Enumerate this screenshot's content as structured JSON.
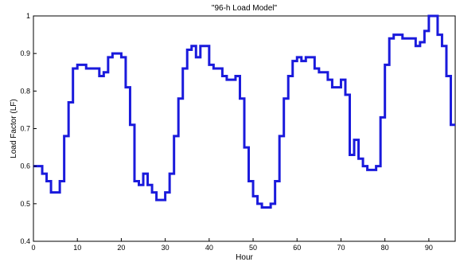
{
  "chart_data": {
    "type": "line",
    "step": true,
    "title": "\"96-h Load Model\"",
    "xlabel": "Hour",
    "ylabel": "Load Factor (LF)",
    "xlim": [
      0,
      96
    ],
    "ylim": [
      0.4,
      1.0
    ],
    "x_ticks": [
      0,
      10,
      20,
      30,
      40,
      50,
      60,
      70,
      80,
      90
    ],
    "y_ticks": [
      0.4,
      0.5,
      0.6,
      0.7,
      0.8,
      0.9,
      1.0
    ],
    "y_tick_labels": [
      "0.4",
      "0.5",
      "0.6",
      "0.7",
      "0.8",
      "0.9",
      "1"
    ],
    "grid": false,
    "legend": "none",
    "series_color": "#1a1adc",
    "series": [
      {
        "x": [
          0,
          1,
          2,
          3,
          4,
          5,
          6,
          7,
          8,
          9,
          10,
          11,
          12,
          13,
          14,
          15,
          16,
          17,
          18,
          19,
          20,
          21,
          22,
          23,
          24,
          25,
          26,
          27,
          28,
          29,
          30,
          31,
          32,
          33,
          34,
          35,
          36,
          37,
          38,
          39,
          40,
          41,
          42,
          43,
          44,
          45,
          46,
          47,
          48,
          49,
          50,
          51,
          52,
          53,
          54,
          55,
          56,
          57,
          58,
          59,
          60,
          61,
          62,
          63,
          64,
          65,
          66,
          67,
          68,
          69,
          70,
          71,
          72,
          73,
          74,
          75,
          76,
          77,
          78,
          79,
          80,
          81,
          82,
          83,
          84,
          85,
          86,
          87,
          88,
          89,
          90,
          91,
          92,
          93,
          94,
          95,
          96
        ],
        "values": [
          0.6,
          0.6,
          0.58,
          0.56,
          0.53,
          0.53,
          0.56,
          0.68,
          0.77,
          0.86,
          0.87,
          0.87,
          0.86,
          0.86,
          0.86,
          0.84,
          0.85,
          0.89,
          0.9,
          0.9,
          0.89,
          0.81,
          0.71,
          0.56,
          0.55,
          0.58,
          0.55,
          0.53,
          0.51,
          0.51,
          0.53,
          0.58,
          0.68,
          0.78,
          0.86,
          0.91,
          0.92,
          0.89,
          0.92,
          0.92,
          0.87,
          0.86,
          0.86,
          0.84,
          0.83,
          0.83,
          0.84,
          0.78,
          0.65,
          0.56,
          0.52,
          0.5,
          0.49,
          0.49,
          0.5,
          0.56,
          0.68,
          0.78,
          0.84,
          0.88,
          0.89,
          0.88,
          0.89,
          0.89,
          0.86,
          0.85,
          0.85,
          0.83,
          0.81,
          0.81,
          0.83,
          0.79,
          0.63,
          0.67,
          0.62,
          0.6,
          0.59,
          0.59,
          0.6,
          0.73,
          0.87,
          0.94,
          0.95,
          0.95,
          0.94,
          0.94,
          0.94,
          0.92,
          0.93,
          0.96,
          1.0,
          1.0,
          0.95,
          0.92,
          0.84,
          0.71,
          0.71
        ]
      }
    ]
  }
}
